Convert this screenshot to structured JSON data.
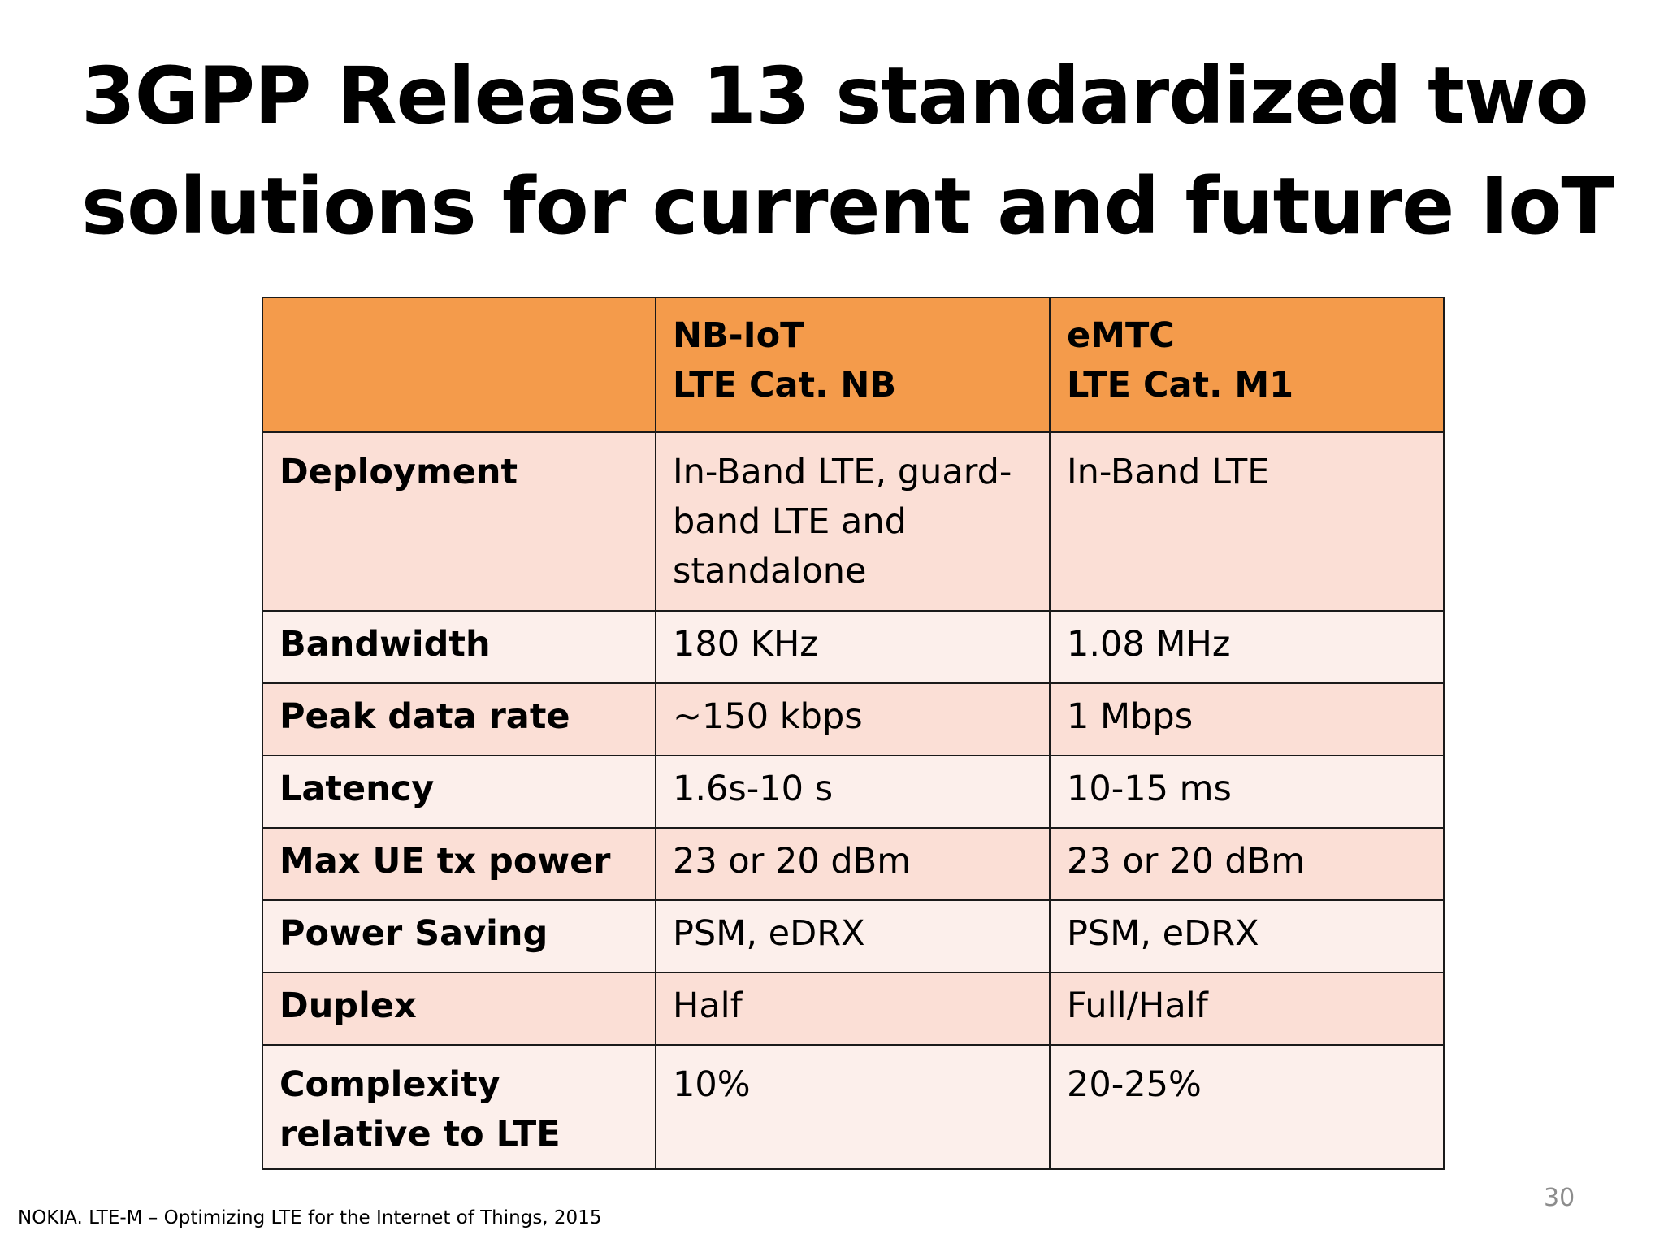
{
  "slide": {
    "title_line1": "3GPP Release 13 standardized two",
    "title_line2": "solutions for current and future IoT",
    "footnote": "NOKIA. LTE-M – Optimizing LTE for the Internet of Things, 2015",
    "page_number": "30"
  },
  "table": {
    "header": [
      {
        "line1": "",
        "line2": ""
      },
      {
        "line1": "NB-IoT",
        "line2": "LTE Cat. NB"
      },
      {
        "line1": "eMTC",
        "line2": "LTE Cat. M1"
      }
    ],
    "rows": [
      {
        "label": "Deployment",
        "nbiot": "In-Band LTE, guard-band LTE and standalone",
        "emtc": "In-Band LTE"
      },
      {
        "label": "Bandwidth",
        "nbiot": "180 KHz",
        "emtc": "1.08 MHz"
      },
      {
        "label": "Peak data rate",
        "nbiot": "~150 kbps",
        "emtc": "1 Mbps"
      },
      {
        "label": "Latency",
        "nbiot": "1.6s-10 s",
        "emtc": "10-15 ms"
      },
      {
        "label": "Max UE tx power",
        "nbiot": "23 or 20 dBm",
        "emtc": "23 or 20 dBm"
      },
      {
        "label": "Power Saving",
        "nbiot": "PSM, eDRX",
        "emtc": "PSM, eDRX"
      },
      {
        "label": "Duplex",
        "nbiot": "Half",
        "emtc": "Full/Half"
      },
      {
        "label": "Complexity relative to LTE",
        "nbiot": "10%",
        "emtc": "20-25%"
      }
    ]
  },
  "colors": {
    "header_fill": "#f49b4b",
    "row_fill_dark": "#fbdfd6",
    "row_fill_light": "#fcefeb",
    "page_number": "#8c8c8c"
  }
}
